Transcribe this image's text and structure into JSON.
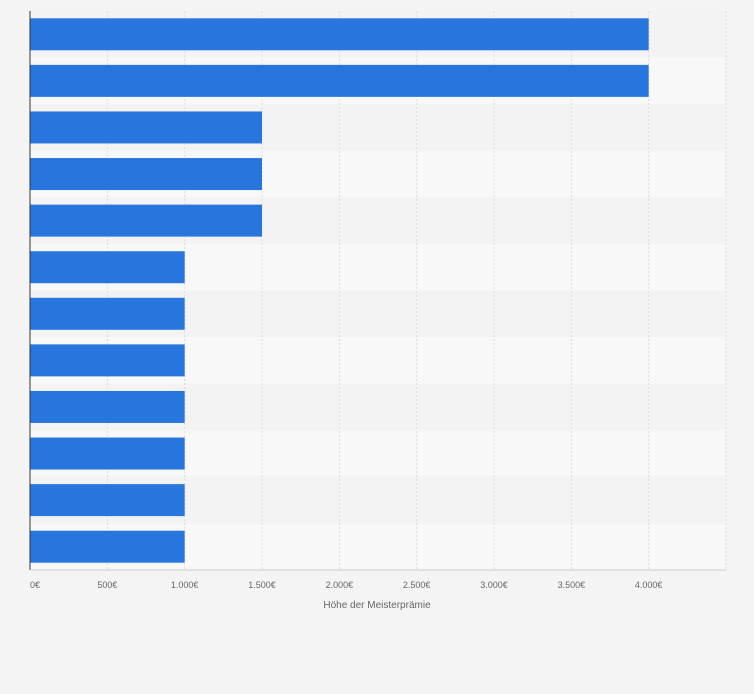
{
  "chart_data": {
    "type": "bar",
    "orientation": "horizontal",
    "title": "",
    "xlabel": "Höhe der Meisterprämie",
    "ylabel": "",
    "categories": [
      "",
      "",
      "",
      "",
      "",
      "",
      "",
      "",
      "",
      "",
      "",
      ""
    ],
    "values": [
      4000,
      4000,
      1500,
      1500,
      1500,
      1000,
      1000,
      1000,
      1000,
      1000,
      1000,
      1000
    ],
    "xlim": [
      0,
      4500
    ],
    "x_ticks": [
      0,
      500,
      1000,
      1500,
      2000,
      2500,
      3000,
      3500,
      4000
    ],
    "x_tick_labels": [
      "0€",
      "500€",
      "1.000€",
      "1.500€",
      "2.000€",
      "2.500€",
      "3.000€",
      "3.500€",
      "4.000€"
    ],
    "grid": "vertical",
    "legend": "none",
    "colors": {
      "bar": "#2876dd",
      "background": "#f4f4f4",
      "band_light": "#f8f8f8",
      "band_dark": "#f3f3f3",
      "grid": "#dcdcdc",
      "axis": "#333333",
      "text": "#666666"
    }
  }
}
